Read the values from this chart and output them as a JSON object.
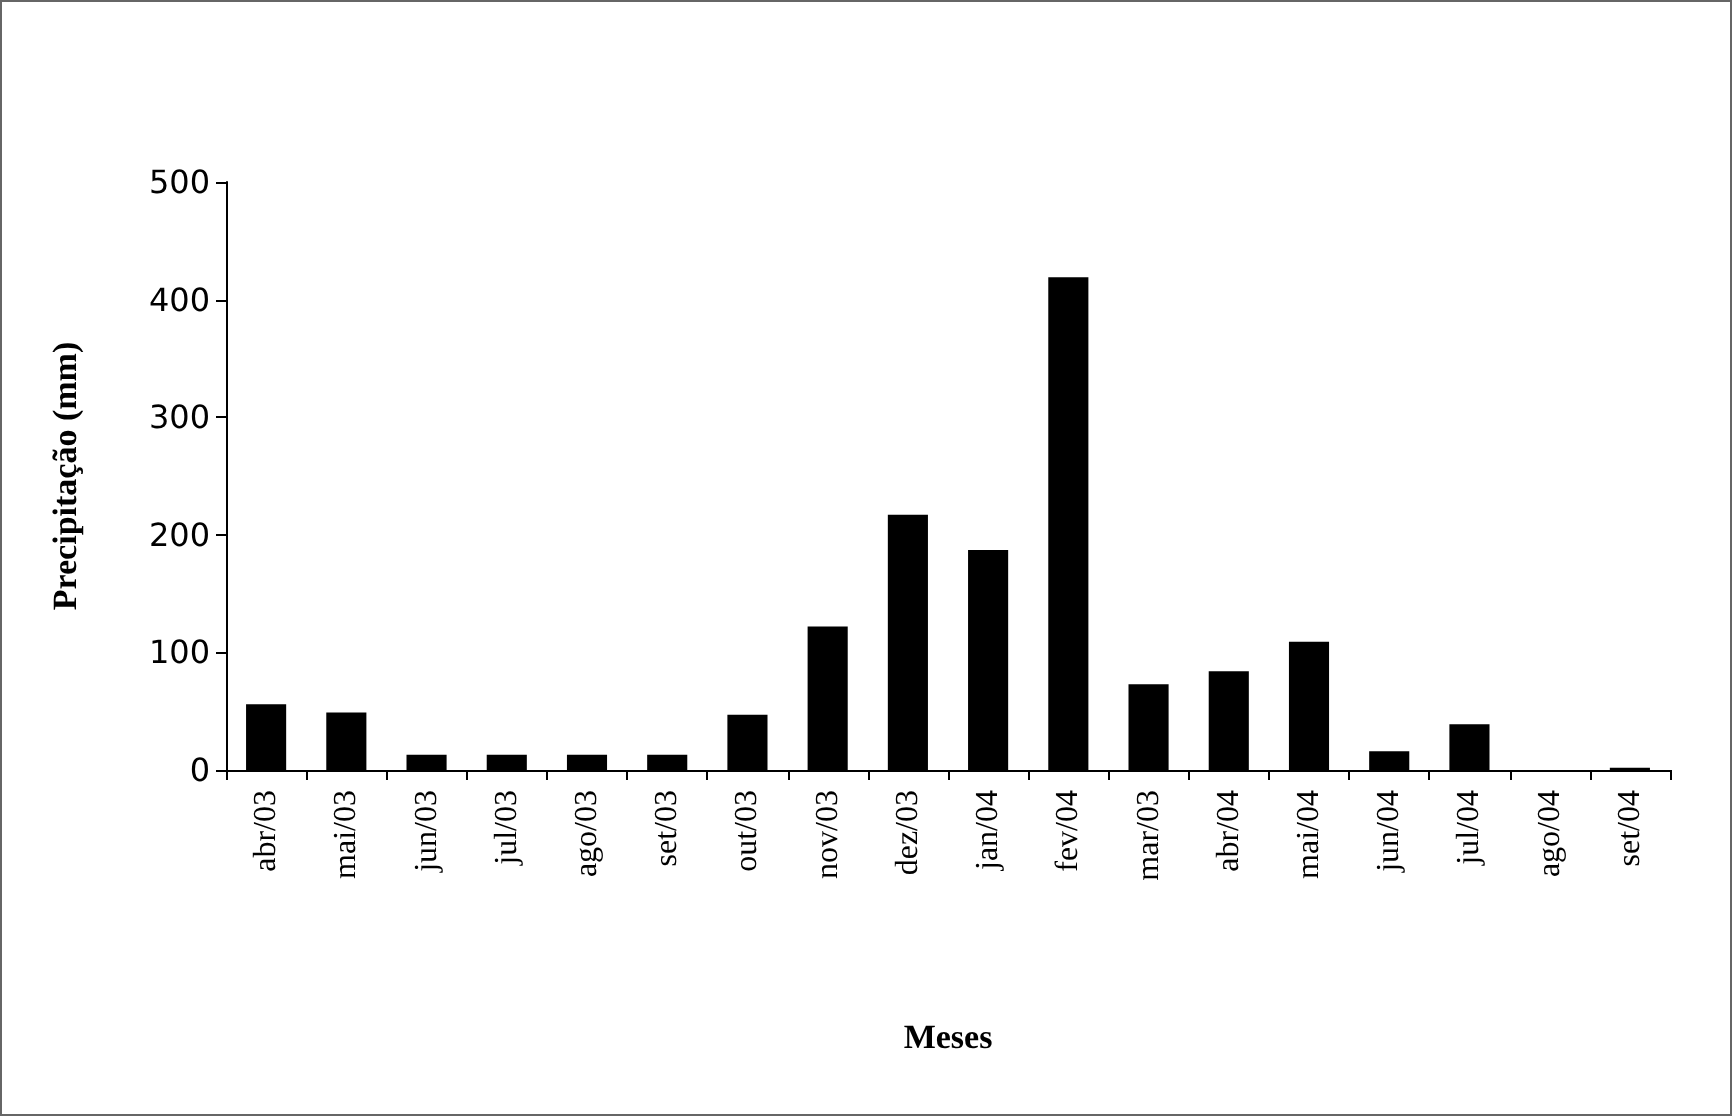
{
  "chart_data": {
    "type": "bar",
    "xlabel": "Meses",
    "ylabel": "Precipitação (mm)",
    "categories": [
      "abr/03",
      "mai/03",
      "jun/03",
      "jul/03",
      "ago/03",
      "set/03",
      "out/03",
      "nov/03",
      "dez/03",
      "jan/04",
      "fev/04",
      "mar/03",
      "abr/04",
      "mai/04",
      "jun/04",
      "jul/04",
      "ago/04",
      "set/04"
    ],
    "values": [
      56,
      49,
      13,
      13,
      13,
      13,
      47,
      122,
      217,
      187,
      419,
      73,
      84,
      109,
      16,
      39,
      0,
      2
    ],
    "color": "#000000",
    "ylim": [
      0,
      500
    ],
    "yticks": [
      0,
      100,
      200,
      300,
      400,
      500
    ],
    "grid": false
  }
}
